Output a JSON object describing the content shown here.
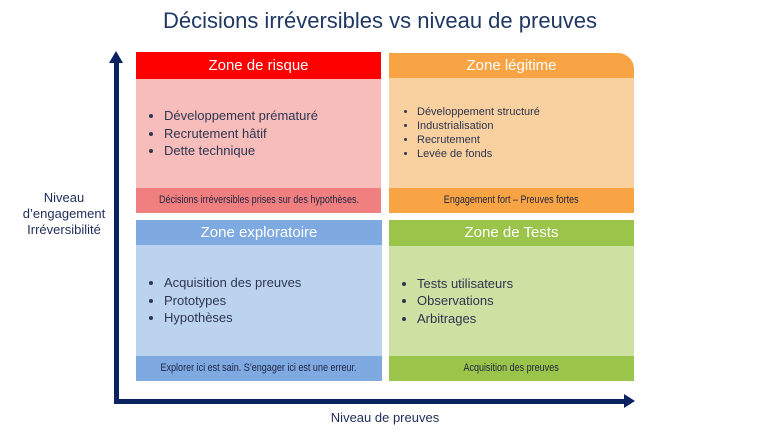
{
  "title": "Décisions irréversibles vs niveau de preuves",
  "y_axis_label": [
    "Niveau",
    "d’engagement",
    "Irréversibilité"
  ],
  "x_axis_label": "Niveau de preuves",
  "quadrants": [
    {
      "title": "Zone de risque",
      "items": [
        "Développement prématuré",
        "Recrutement hâtif",
        "Dette technique"
      ],
      "footer": "Décisions irréversibles prises sur des hypothèses.",
      "colors": {
        "header": "#ff0000",
        "body": "#f7bdbb",
        "footer": "#f08080"
      }
    },
    {
      "title": "Zone légitime",
      "items": [
        "Développement structuré",
        "Industrialisation",
        "Recrutement",
        "Levée de fonds"
      ],
      "footer": "Engagement fort – Preuves fortes",
      "colors": {
        "header": "#f8a444",
        "body": "#f9d09f",
        "footer": "#f8a444"
      }
    },
    {
      "title": "Zone exploratoire",
      "items": [
        "Acquisition des preuves",
        "Prototypes",
        "Hypothèses"
      ],
      "footer": "Explorer ici est sain. S’engager ici est une erreur.",
      "colors": {
        "header": "#7ea9e1",
        "body": "#bcd3f0",
        "footer": "#7ea9e1"
      }
    },
    {
      "title": "Zone de Tests",
      "items": [
        "Tests utilisateurs",
        "Observations",
        "Arbitrages"
      ],
      "footer": "Acquisition des preuves",
      "colors": {
        "header": "#9bc54a",
        "body": "#cde1a2",
        "footer": "#9bc54a"
      }
    }
  ],
  "axis_color": "#0a2260"
}
